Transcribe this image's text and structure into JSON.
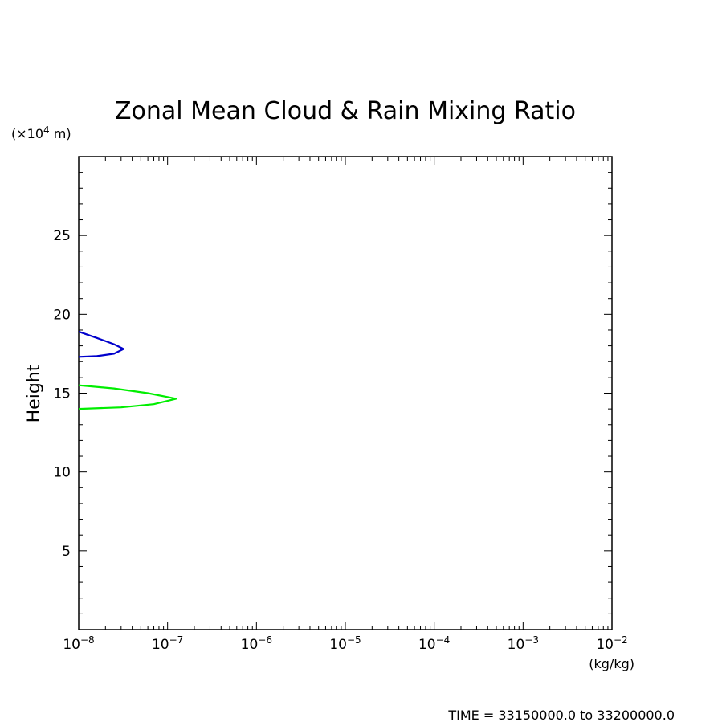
{
  "chart_data": {
    "type": "line",
    "title": "Zonal Mean Cloud & Rain Mixing Ratio",
    "xlabel": "(kg/kg)",
    "ylabel": "Height",
    "y_unit_label": {
      "prefix": "(×10",
      "exponent": "4",
      "suffix": " m)"
    },
    "x_scale": "log",
    "xlim": [
      1e-08,
      0.01
    ],
    "ylim": [
      0,
      30
    ],
    "x_ticks": [
      {
        "base": "10",
        "exp": "−8",
        "value": 1e-08
      },
      {
        "base": "10",
        "exp": "−7",
        "value": 1e-07
      },
      {
        "base": "10",
        "exp": "−6",
        "value": 1e-06
      },
      {
        "base": "10",
        "exp": "−5",
        "value": 1e-05
      },
      {
        "base": "10",
        "exp": "−4",
        "value": 0.0001
      },
      {
        "base": "10",
        "exp": "−3",
        "value": 0.001
      },
      {
        "base": "10",
        "exp": "−2",
        "value": 0.01
      }
    ],
    "y_ticks": [
      "5",
      "10",
      "15",
      "20",
      "25"
    ],
    "y_tick_values": [
      5,
      10,
      15,
      20,
      25
    ],
    "grid": false,
    "series": [
      {
        "color": "#0000cc",
        "points": [
          [
            1e-08,
            18.9
          ],
          [
            1.6e-08,
            18.5
          ],
          [
            2.5e-08,
            18.1
          ],
          [
            3.2e-08,
            17.8
          ],
          [
            2.5e-08,
            17.5
          ],
          [
            1.6e-08,
            17.35
          ],
          [
            1e-08,
            17.3
          ]
        ]
      },
      {
        "color": "#00ee00",
        "points": [
          [
            1e-08,
            15.5
          ],
          [
            2.5e-08,
            15.3
          ],
          [
            6e-08,
            15.0
          ],
          [
            1.25e-07,
            14.65
          ],
          [
            7e-08,
            14.3
          ],
          [
            3e-08,
            14.1
          ],
          [
            1e-08,
            14.0
          ]
        ]
      }
    ]
  },
  "footer": {
    "time_text": "TIME = 33150000.0 to 33200000.0"
  }
}
